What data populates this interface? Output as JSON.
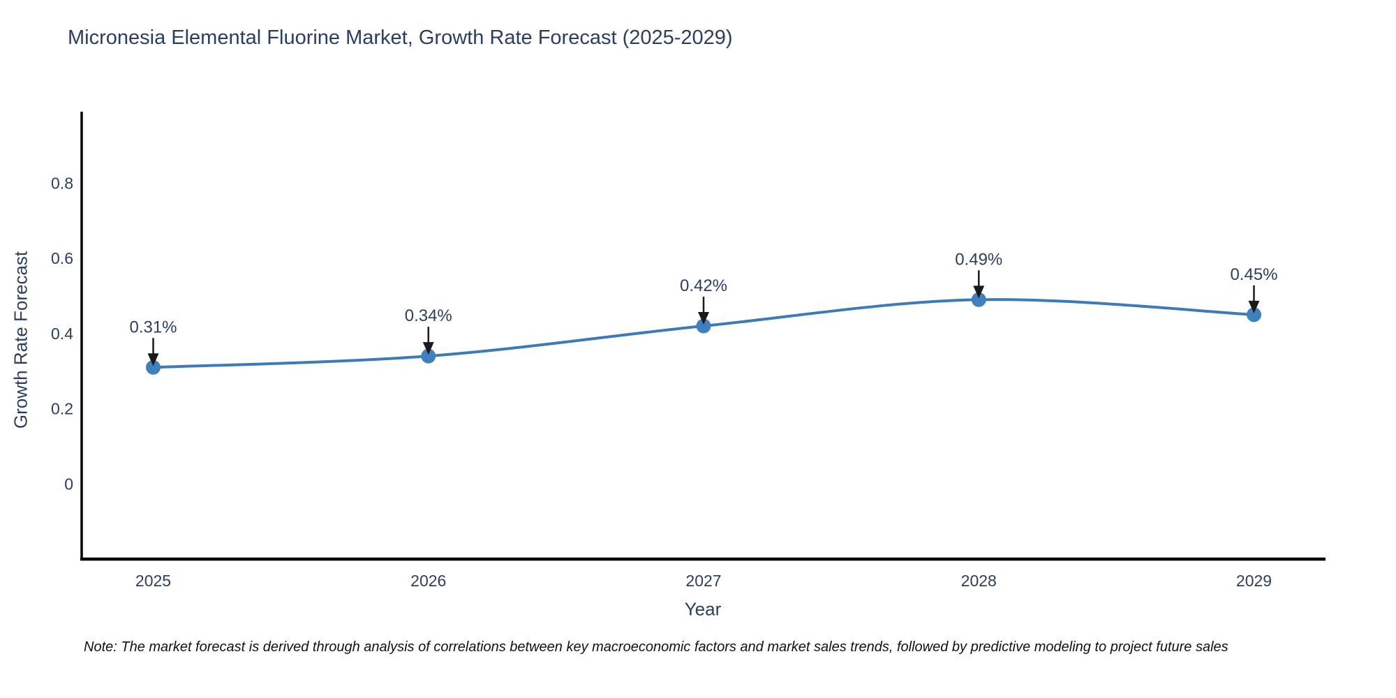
{
  "title": "Micronesia Elemental Fluorine Market, Growth Rate Forecast (2025-2029)",
  "note": "Note: The market forecast is derived through analysis of correlations between key macroeconomic factors and market sales trends, followed by predictive modeling to project future sales",
  "chart_data": {
    "type": "line",
    "title": "Micronesia Elemental Fluorine Market, Growth Rate Forecast (2025-2029)",
    "xlabel": "Year",
    "ylabel": "Growth Rate Forecast",
    "x": [
      2025,
      2026,
      2027,
      2028,
      2029
    ],
    "values": [
      0.31,
      0.34,
      0.42,
      0.49,
      0.45
    ],
    "point_labels": [
      "0.31%",
      "0.34%",
      "0.42%",
      "0.49%",
      "0.45%"
    ],
    "xticks": [
      2025,
      2026,
      2027,
      2028,
      2029
    ],
    "xtick_labels": [
      "2025",
      "2026",
      "2027",
      "2028",
      "2029"
    ],
    "yticks": [
      0,
      0.2,
      0.4,
      0.6,
      0.8
    ],
    "ytick_labels": [
      "0",
      "0.2",
      "0.4",
      "0.6",
      "0.8"
    ],
    "xlim": [
      2024.74,
      2029.26
    ],
    "ylim": [
      -0.2,
      0.99
    ],
    "grid": false,
    "legend": "none",
    "smooth": true,
    "line_color": "#3c7bb8",
    "marker_color": "#4080bd",
    "spine_color": "#000000",
    "tick_text_color": "#2a3f5f",
    "annotation_text_color": "#2a3f5f",
    "arrow_color": "#1a1a1a"
  }
}
